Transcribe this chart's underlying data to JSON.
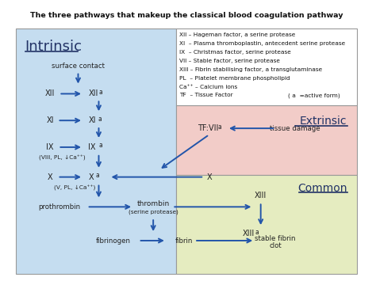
{
  "title": "The three pathways that makeup the classical blood coagulation pathway",
  "bg_color": "#ffffff",
  "intrinsic_color": "#c5ddf0",
  "extrinsic_color": "#f2ccc8",
  "common_color": "#e5ecc0",
  "arrow_color": "#2255aa",
  "legend_lines": [
    "XII – Hageman factor, a serine protease",
    "XI  – Plasma thromboplastin, antecedent serine protease",
    "IX  – Christmas factor, serine protease",
    "VII – Stable factor, serine protease",
    "XIII – Fibrin stabilising factor, a transglutaminase",
    "PL  – Platelet membrane phospholipid",
    "Ca⁺⁺ – Calcium ions",
    "TF  – Tissue Factor"
  ],
  "legend_note": "( a  =active form)"
}
